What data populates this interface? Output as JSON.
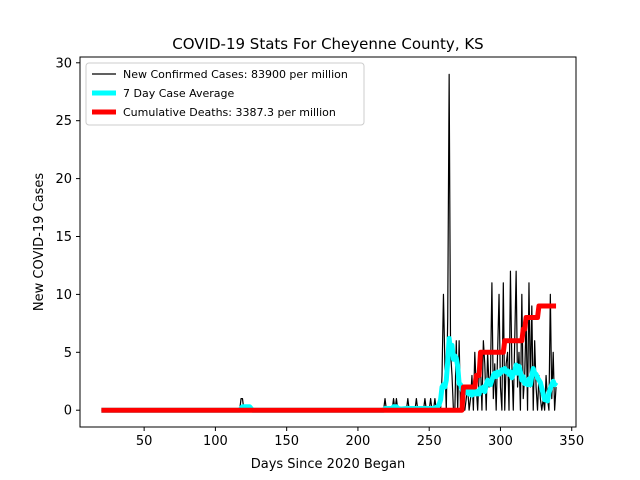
{
  "chart_data": {
    "type": "line",
    "title": "COVID-19 Stats For Cheyenne County, KS",
    "xlabel": "Days Since 2020 Began",
    "ylabel": "New COVID-19 Cases",
    "xlim": [
      5,
      353
    ],
    "ylim": [
      -1.45,
      30.5
    ],
    "xticks": [
      50,
      100,
      150,
      200,
      250,
      300,
      350
    ],
    "yticks": [
      0,
      5,
      10,
      15,
      20,
      25,
      30
    ],
    "grid": false,
    "legend_position": "top-left",
    "series": [
      {
        "name": "New Confirmed Cases: 83900 per million",
        "color": "#000000",
        "x": [
          20,
          117,
          118,
          119,
          120,
          121,
          122,
          218,
          219,
          220,
          224,
          225,
          226,
          227,
          228,
          234,
          235,
          236,
          240,
          241,
          242,
          246,
          247,
          248,
          250,
          251,
          252,
          253,
          254,
          255,
          256,
          257,
          258,
          259,
          260,
          261,
          262,
          263,
          264,
          265,
          266,
          267,
          268,
          269,
          270,
          271,
          272,
          273,
          274,
          275,
          276,
          277,
          278,
          279,
          280,
          281,
          282,
          283,
          284,
          285,
          286,
          287,
          288,
          289,
          290,
          291,
          292,
          293,
          294,
          295,
          296,
          297,
          298,
          299,
          300,
          301,
          302,
          303,
          304,
          305,
          306,
          307,
          308,
          309,
          310,
          311,
          312,
          313,
          314,
          315,
          316,
          317,
          318,
          319,
          320,
          321,
          322,
          323,
          324,
          325,
          326,
          327,
          328,
          329,
          330,
          331,
          332,
          333,
          334,
          335,
          336,
          337,
          338,
          339
        ],
        "y": [
          0,
          0,
          1,
          1,
          0,
          0,
          0,
          0,
          1,
          0,
          0,
          1,
          0,
          1,
          0,
          0,
          1,
          0,
          0,
          1,
          0,
          0,
          1,
          0,
          0,
          1,
          0,
          0,
          1,
          0,
          0,
          1,
          0,
          3,
          10,
          4,
          0,
          8,
          29,
          5,
          3,
          0,
          0,
          6,
          0,
          6,
          0,
          2,
          0,
          0,
          1,
          2,
          0,
          1,
          3,
          0,
          5,
          2,
          0,
          3,
          4,
          0,
          6,
          4,
          0,
          5,
          2,
          3,
          11,
          1,
          4,
          0,
          5,
          10,
          2,
          0,
          11,
          0,
          4,
          5,
          0,
          12,
          4,
          0,
          6,
          12,
          2,
          5,
          0,
          10,
          1,
          3,
          8,
          0,
          11,
          2,
          9,
          0,
          6,
          2,
          0,
          3,
          1,
          0,
          1,
          0,
          3,
          1,
          0,
          10,
          1,
          5,
          0,
          2
        ]
      },
      {
        "name": "7 Day Case Average",
        "color": "#00ffff",
        "x": [
          20,
          117,
          118,
          119,
          120,
          121,
          122,
          123,
          124,
          125,
          126,
          218,
          219,
          220,
          224,
          225,
          226,
          227,
          228,
          230,
          234,
          236,
          240,
          242,
          246,
          248,
          250,
          252,
          254,
          256,
          257,
          258,
          259,
          260,
          261,
          262,
          263,
          264,
          265,
          266,
          267,
          268,
          269,
          270,
          271,
          272,
          273,
          274,
          275,
          276,
          277,
          278,
          279,
          280,
          281,
          282,
          283,
          284,
          285,
          286,
          287,
          288,
          289,
          290,
          291,
          292,
          293,
          294,
          295,
          296,
          297,
          298,
          299,
          300,
          301,
          302,
          303,
          304,
          305,
          306,
          307,
          308,
          309,
          310,
          311,
          312,
          313,
          314,
          315,
          316,
          317,
          318,
          319,
          320,
          321,
          322,
          323,
          324,
          325,
          326,
          327,
          328,
          329,
          330,
          331,
          332,
          333,
          334,
          335,
          336,
          337,
          338,
          339
        ],
        "y": [
          0,
          0,
          0.15,
          0.3,
          0.3,
          0.3,
          0.3,
          0.3,
          0.3,
          0.15,
          0,
          0,
          0.15,
          0.15,
          0.15,
          0.3,
          0.3,
          0.3,
          0.15,
          0.1,
          0.15,
          0.15,
          0.15,
          0.15,
          0.15,
          0.15,
          0.15,
          0.15,
          0.2,
          0.3,
          0.5,
          0.9,
          2.0,
          2.2,
          2.0,
          2.6,
          4.2,
          6.2,
          5.0,
          5.6,
          4.4,
          4.7,
          4.5,
          3.8,
          2.3,
          2.2,
          1.8,
          1.5,
          1.8,
          1.5,
          1.8,
          1.4,
          1.6,
          1.3,
          1.5,
          1.8,
          1.4,
          1.6,
          1.4,
          1.9,
          1.7,
          2.0,
          1.6,
          2.2,
          2.6,
          2.3,
          2.2,
          2.6,
          3.0,
          3.2,
          2.9,
          3.3,
          3.1,
          3.2,
          3.5,
          3.4,
          3.6,
          3.3,
          3.4,
          3.1,
          3.3,
          2.8,
          3.1,
          3.4,
          3.9,
          3.2,
          3.8,
          3.3,
          2.6,
          2.9,
          2.3,
          2.5,
          2.2,
          2.7,
          2.2,
          3.0,
          3.6,
          3.2,
          3.1,
          2.8,
          2.6,
          2.4,
          1.9,
          1.4,
          0.9,
          1.0,
          0.8,
          1.5,
          1.9,
          2.2,
          2.5,
          2.2,
          2.4
        ]
      },
      {
        "name": "Cumulative Deaths: 3387.3 per million",
        "color": "#ff0000",
        "x": [
          20,
          273,
          274,
          282,
          283,
          285,
          286,
          302,
          303,
          310,
          311,
          315,
          316,
          317,
          318,
          326,
          327,
          328,
          329,
          339
        ],
        "y": [
          0,
          0,
          2,
          2,
          3,
          3,
          5,
          5,
          6,
          6,
          6,
          6,
          7,
          7,
          8,
          8,
          9,
          9,
          9,
          9
        ]
      }
    ]
  }
}
